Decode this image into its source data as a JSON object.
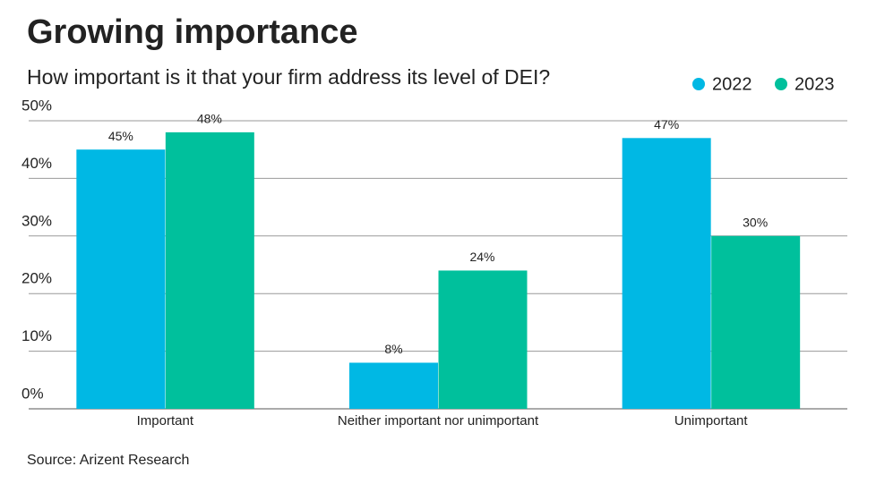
{
  "chart_data": {
    "type": "bar",
    "title": "Growing importance",
    "subtitle": "How important is it that your firm address its level of DEI?",
    "source": "Source: Arizent Research",
    "categories": [
      "Important",
      "Neither important nor unimportant",
      "Unimportant"
    ],
    "series": [
      {
        "name": "2022",
        "color": "#00b8e4",
        "values": [
          45,
          8,
          47
        ],
        "value_labels": [
          "45%",
          "8%",
          "47%"
        ]
      },
      {
        "name": "2023",
        "color": "#00c09c",
        "values": [
          48,
          24,
          30
        ],
        "value_labels": [
          "48%",
          "24%",
          "30%"
        ]
      }
    ],
    "ylim": [
      0,
      50
    ],
    "yticks": [
      {
        "value": 0,
        "label": "0%"
      },
      {
        "value": 10,
        "label": "10%"
      },
      {
        "value": 20,
        "label": "20%"
      },
      {
        "value": 30,
        "label": "30%"
      },
      {
        "value": 40,
        "label": "40%"
      },
      {
        "value": 50,
        "label": "50%"
      }
    ],
    "grid": true,
    "legend": "top-right"
  }
}
